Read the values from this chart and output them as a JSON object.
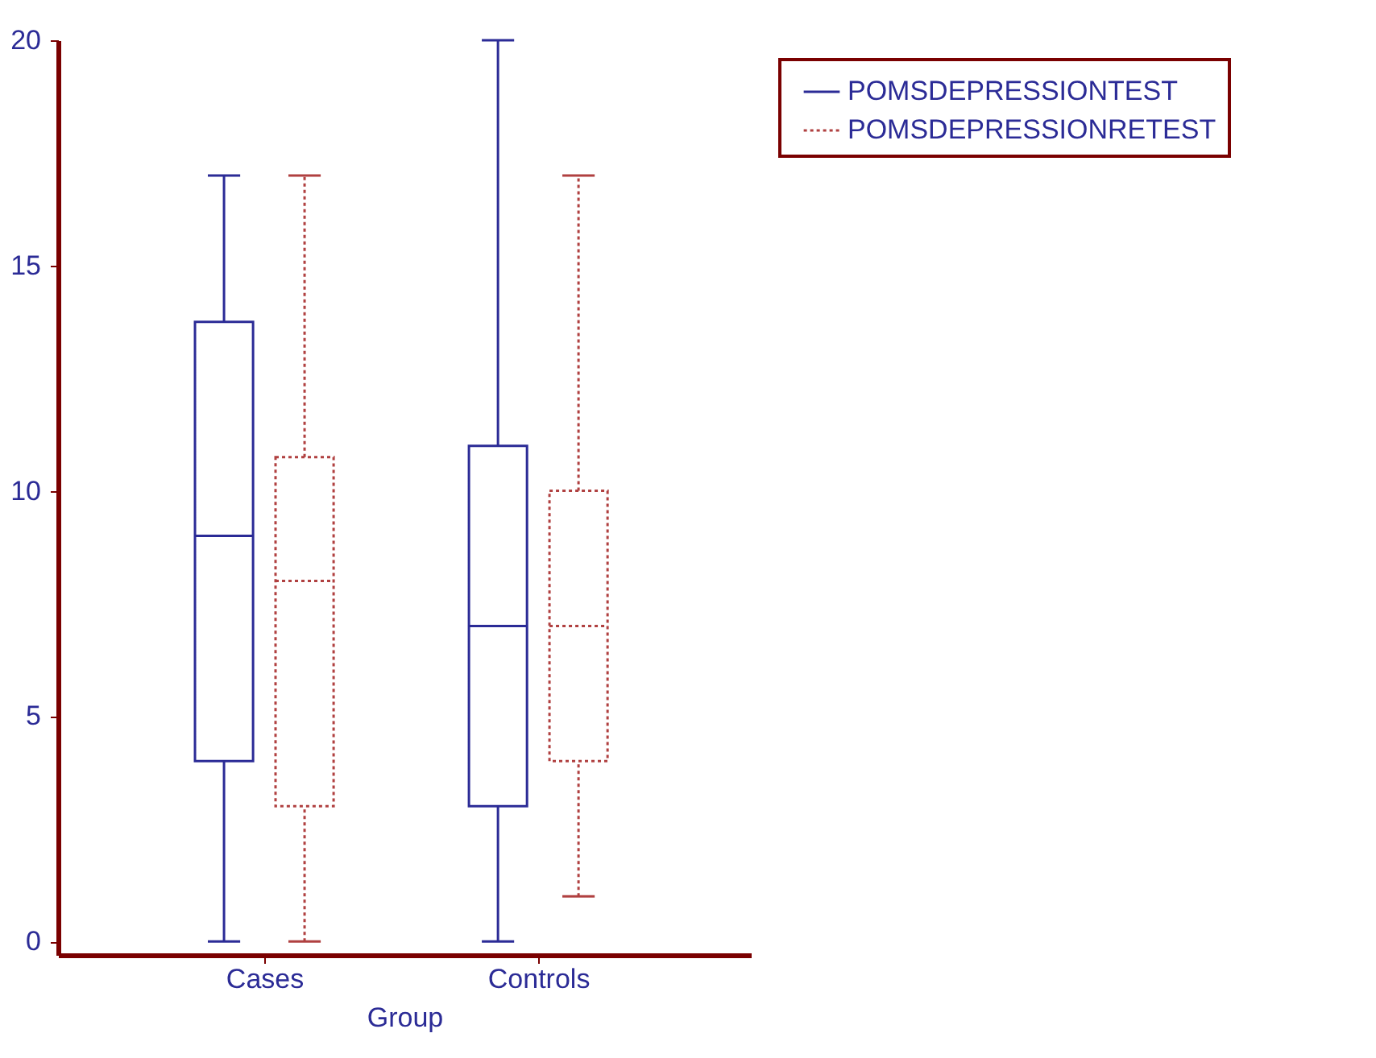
{
  "chart_data": {
    "type": "box",
    "xlabel": "Group",
    "categories": [
      "Cases",
      "Controls"
    ],
    "ylim": [
      -0.3,
      20
    ],
    "yticks": [
      0,
      5,
      10,
      15,
      20
    ],
    "grid": false,
    "legend": "top right",
    "series": [
      {
        "name": "POMSDEPRESSIONTEST",
        "color": "#2b2b96",
        "line_style": "solid",
        "boxes": [
          {
            "low": 0,
            "q1": 4,
            "median": 9,
            "q3": 13.75,
            "high": 17
          },
          {
            "low": 0,
            "q1": 3,
            "median": 7,
            "q3": 11,
            "high": 20
          }
        ]
      },
      {
        "name": "POMSDEPRESSIONRETEST",
        "color": "#b04040",
        "line_style": "dotted",
        "boxes": [
          {
            "low": 0,
            "q1": 3,
            "median": 8,
            "q3": 10.75,
            "high": 17
          },
          {
            "low": 1,
            "q1": 4,
            "median": 7,
            "q3": 10,
            "high": 17
          }
        ]
      }
    ]
  }
}
